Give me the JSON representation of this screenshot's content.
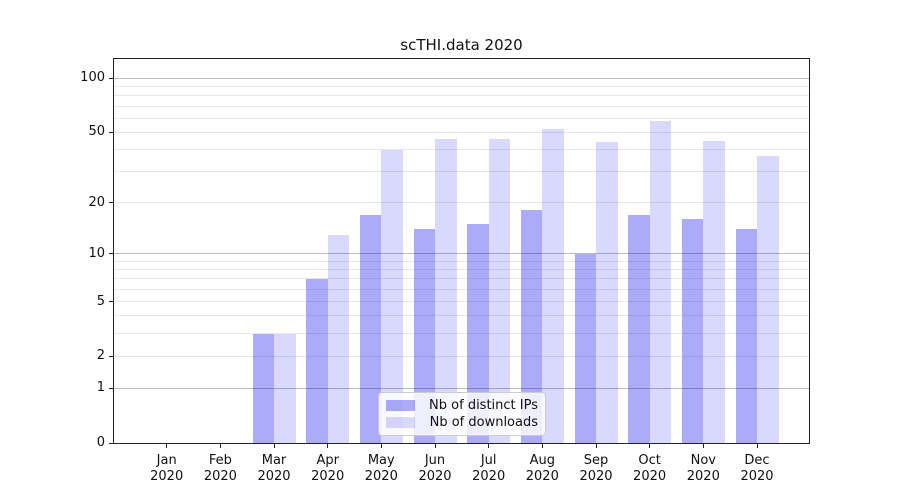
{
  "chart_data": {
    "type": "bar",
    "title": "scTHI.data 2020",
    "months": [
      "Jan",
      "Feb",
      "Mar",
      "Apr",
      "May",
      "Jun",
      "Jul",
      "Aug",
      "Sep",
      "Oct",
      "Nov",
      "Dec"
    ],
    "year": "2020",
    "series": [
      {
        "name": "Nb of distinct IPs",
        "color": "#0000F054",
        "values": [
          0,
          0,
          3,
          7,
          17,
          14,
          15,
          18,
          10,
          17,
          16,
          14
        ]
      },
      {
        "name": "Nb of downloads",
        "color": "#0000F026",
        "values": [
          0,
          0,
          3,
          13,
          40,
          46,
          46,
          52,
          44,
          58,
          45,
          37
        ]
      }
    ],
    "yscale": "log1p",
    "ylim": [
      0,
      130
    ],
    "y_ticks": [
      0,
      1,
      2,
      5,
      10,
      20,
      50,
      100
    ],
    "gridlines_minor": [
      2,
      3,
      4,
      5,
      6,
      7,
      8,
      9,
      20,
      30,
      40,
      50,
      60,
      70,
      80,
      90
    ],
    "gridlines_major": [
      1,
      10,
      100
    ],
    "legend_position": "lower-center",
    "grid_on": true,
    "colors": {
      "minor_grid": "#e7e7e7",
      "major_grid": "#bbbbbb",
      "spine": "#222222",
      "text": "#111111"
    }
  }
}
